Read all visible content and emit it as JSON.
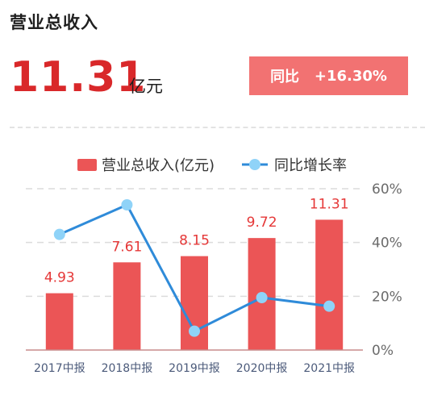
{
  "header": {
    "title": "营业总收入",
    "value": "11.31",
    "unit": "亿元",
    "yoy_label": "同比",
    "yoy_value": "+16.30%"
  },
  "colors": {
    "bar": "#eb5556",
    "line": "#2f8bd9",
    "marker": "#8fd3f8",
    "value_text": "#d9282a",
    "badge": "#f27272"
  },
  "chart_data": {
    "type": "bar",
    "categories": [
      "2017中报",
      "2018中报",
      "2019中报",
      "2020中报",
      "2021中报"
    ],
    "series": [
      {
        "name": "营业总收入(亿元)",
        "type": "bar",
        "values": [
          4.93,
          7.61,
          8.15,
          9.72,
          11.31
        ],
        "labels": [
          "4.93",
          "7.61",
          "8.15",
          "9.72",
          "11.31"
        ]
      },
      {
        "name": "同比增长率",
        "type": "line",
        "axis": "right",
        "values": [
          43,
          54,
          7,
          19.5,
          16.3
        ]
      }
    ],
    "right_axis": {
      "min": 0,
      "max": 60,
      "ticks": [
        "60%",
        "40%",
        "20%",
        "0%"
      ]
    },
    "left_axis_max": 14,
    "legend": "top",
    "grid": true
  }
}
